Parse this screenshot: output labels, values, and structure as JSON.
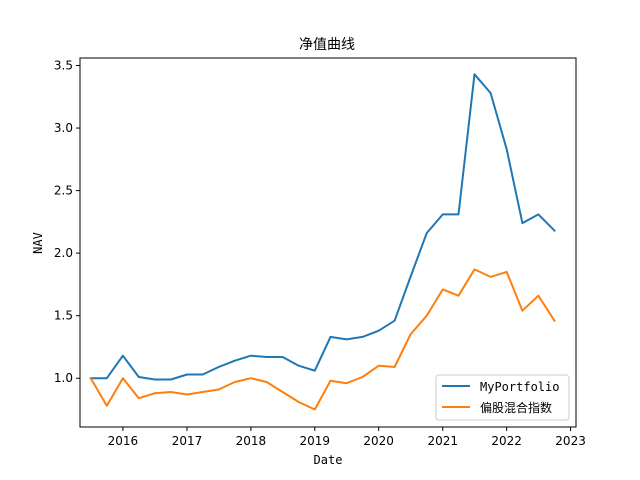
{
  "chart_data": {
    "type": "line",
    "title": "净值曲线",
    "xlabel": "Date",
    "ylabel": "NAV",
    "x": [
      "2015-07-01",
      "2015-10-01",
      "2016-01-01",
      "2016-04-01",
      "2016-07-01",
      "2016-10-01",
      "2017-01-01",
      "2017-04-01",
      "2017-07-01",
      "2017-10-01",
      "2018-01-01",
      "2018-04-01",
      "2018-07-01",
      "2018-10-01",
      "2019-01-01",
      "2019-04-01",
      "2019-07-01",
      "2019-10-01",
      "2020-01-01",
      "2020-04-01",
      "2020-07-01",
      "2020-10-01",
      "2021-01-01",
      "2021-04-01",
      "2021-07-01",
      "2021-10-01",
      "2022-01-01",
      "2022-04-01",
      "2022-07-01",
      "2022-10-01"
    ],
    "series": [
      {
        "name": "MyPortfolio",
        "color": "#1f77b4",
        "values": [
          1.0,
          1.0,
          1.18,
          1.01,
          0.99,
          0.99,
          1.03,
          1.03,
          1.09,
          1.14,
          1.18,
          1.17,
          1.17,
          1.1,
          1.06,
          1.33,
          1.31,
          1.33,
          1.38,
          1.46,
          1.81,
          2.16,
          2.31,
          2.31,
          3.43,
          3.28,
          2.83,
          2.24,
          2.31,
          2.18
        ]
      },
      {
        "name": "偏股混合指数",
        "color": "#ff7f0e",
        "values": [
          1.0,
          0.78,
          1.0,
          0.84,
          0.88,
          0.89,
          0.87,
          0.89,
          0.91,
          0.97,
          1.0,
          0.97,
          0.89,
          0.81,
          0.75,
          0.98,
          0.96,
          1.01,
          1.1,
          1.09,
          1.35,
          1.5,
          1.71,
          1.66,
          1.87,
          1.81,
          1.85,
          1.54,
          1.66,
          1.46
        ]
      }
    ],
    "xticks": [
      "2016",
      "2017",
      "2018",
      "2019",
      "2020",
      "2021",
      "2022",
      "2023"
    ],
    "yticks": [
      "1.0",
      "1.5",
      "2.0",
      "2.5",
      "3.0",
      "3.5"
    ],
    "xlim": [
      "2015-05-01",
      "2023-02-01"
    ],
    "ylim": [
      0.61,
      3.56
    ],
    "grid": false,
    "legend_position": "lower-right"
  }
}
